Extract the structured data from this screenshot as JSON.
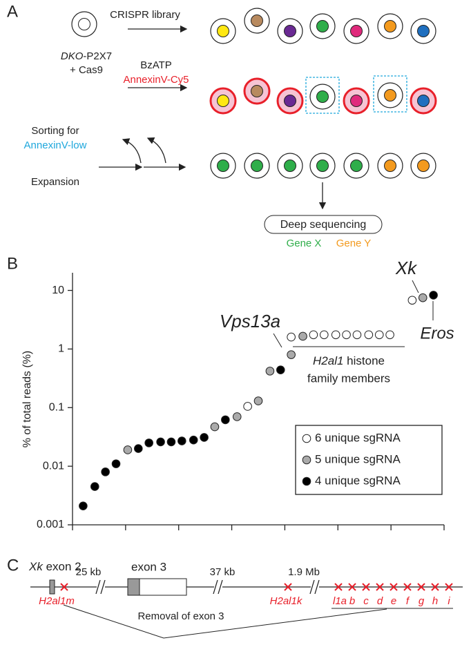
{
  "panel_a": {
    "label": "A",
    "library": "CRISPR library",
    "cell_line": "DKO",
    "cell_line_suffix": "-P2X7",
    "cas9": "+ Cas9",
    "treatment": "BzATP",
    "stain": "AnnexinV-Cy5",
    "sorting": "Sorting for",
    "sort_gate": "AnnexinV-low",
    "expansion": "Expansion",
    "readout": "Deep sequencing",
    "genes": [
      "Gene X",
      "Gene Y"
    ]
  },
  "panel_b_label": "B",
  "chart_data": {
    "type": "scatter",
    "y_label": "% of total reads (%)",
    "log_scale": true,
    "ylim": [
      0.001,
      20
    ],
    "yticks": [
      0.001,
      0.01,
      0.1,
      1,
      10
    ],
    "xlim": [
      0,
      35
    ],
    "xticks": [
      0,
      5,
      10,
      15,
      20,
      25,
      30,
      35
    ],
    "legend": "lower right",
    "series": [
      {
        "name": "6 unique sgRNA",
        "color": "#ffffff",
        "x": [
          16.5,
          20.6,
          22.7,
          23.7,
          24.8,
          25.8,
          26.8,
          27.9,
          28.9,
          29.9,
          32.0
        ],
        "values": [
          0.105,
          1.6,
          1.75,
          1.75,
          1.75,
          1.75,
          1.75,
          1.75,
          1.75,
          1.75,
          6.8
        ]
      },
      {
        "name": "5 unique sgRNA",
        "color": "#aaaaaa",
        "x": [
          5.2,
          13.4,
          15.5,
          17.5,
          18.6,
          20.6,
          21.7,
          33.0
        ],
        "values": [
          0.019,
          0.047,
          0.07,
          0.13,
          0.42,
          0.8,
          1.65,
          7.5
        ]
      },
      {
        "name": "4 unique sgRNA",
        "color": "#000000",
        "x": [
          1.0,
          2.1,
          3.1,
          4.1,
          6.2,
          7.2,
          8.3,
          9.3,
          10.3,
          11.4,
          12.4,
          14.4,
          19.6,
          34.0
        ],
        "values": [
          0.0021,
          0.0045,
          0.008,
          0.011,
          0.02,
          0.025,
          0.026,
          0.026,
          0.027,
          0.028,
          0.031,
          0.062,
          0.44,
          8.3
        ]
      }
    ],
    "annotations": [
      "Xk",
      "Eros",
      "Vps13a"
    ],
    "group_label": {
      "gene": "H2al1",
      "rest": " histone",
      "line2": "family members"
    }
  },
  "panel_c": {
    "label": "C",
    "exon2_gene": "Xk",
    "exon2": " exon 2",
    "exon3": "exon 3",
    "gaps": [
      "25 kb",
      "37 kb",
      "1.9 Mb"
    ],
    "loci": [
      "H2al1m",
      "H2al1k"
    ],
    "cluster": [
      "l1a",
      "b",
      "c",
      "d",
      "e",
      "f",
      "g",
      "h",
      "i"
    ],
    "removal": "Removal of exon 3"
  }
}
